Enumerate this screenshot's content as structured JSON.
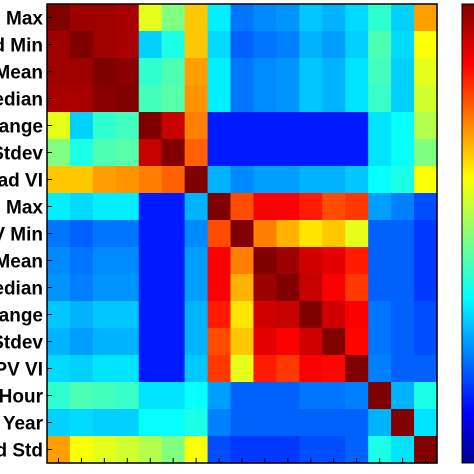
{
  "chart_data": {
    "type": "heatmap",
    "row_labels": [
      "Max",
      "d Min",
      "Mean",
      "edian",
      "ange",
      "Stdev",
      "ad VI",
      "Max",
      "V Min",
      "Mean",
      "edian",
      "ange",
      "Stdev",
      "PV VI",
      "Hour",
      "Year",
      "d Std"
    ],
    "colormap": "jet",
    "colorbar": {
      "visible": true,
      "range": [
        0,
        1
      ]
    },
    "grid": false,
    "values": [
      [
        1.0,
        0.97,
        0.97,
        0.96,
        0.6,
        0.5,
        0.68,
        0.36,
        0.24,
        0.26,
        0.27,
        0.32,
        0.3,
        0.34,
        0.42,
        0.33,
        0.72
      ],
      [
        0.97,
        1.0,
        0.97,
        0.96,
        0.33,
        0.4,
        0.68,
        0.34,
        0.22,
        0.24,
        0.25,
        0.3,
        0.28,
        0.33,
        0.45,
        0.34,
        0.62
      ],
      [
        0.97,
        0.97,
        1.0,
        0.99,
        0.42,
        0.45,
        0.72,
        0.36,
        0.24,
        0.26,
        0.27,
        0.32,
        0.3,
        0.35,
        0.44,
        0.33,
        0.6
      ],
      [
        0.96,
        0.96,
        0.99,
        1.0,
        0.44,
        0.46,
        0.73,
        0.36,
        0.24,
        0.26,
        0.27,
        0.32,
        0.3,
        0.35,
        0.43,
        0.33,
        0.58
      ],
      [
        0.6,
        0.33,
        0.42,
        0.44,
        1.0,
        0.93,
        0.75,
        0.15,
        0.15,
        0.15,
        0.15,
        0.15,
        0.15,
        0.15,
        0.35,
        0.38,
        0.55
      ],
      [
        0.5,
        0.4,
        0.45,
        0.46,
        0.93,
        1.0,
        0.78,
        0.15,
        0.15,
        0.15,
        0.15,
        0.15,
        0.15,
        0.15,
        0.35,
        0.38,
        0.5
      ],
      [
        0.68,
        0.68,
        0.72,
        0.73,
        0.75,
        0.78,
        1.0,
        0.3,
        0.26,
        0.28,
        0.28,
        0.3,
        0.3,
        0.32,
        0.38,
        0.4,
        0.62
      ],
      [
        0.36,
        0.34,
        0.36,
        0.36,
        0.15,
        0.15,
        0.3,
        1.0,
        0.8,
        0.88,
        0.88,
        0.85,
        0.8,
        0.82,
        0.28,
        0.25,
        0.2
      ],
      [
        0.24,
        0.22,
        0.24,
        0.24,
        0.15,
        0.15,
        0.26,
        0.8,
        1.0,
        0.75,
        0.7,
        0.65,
        0.68,
        0.6,
        0.22,
        0.22,
        0.18
      ],
      [
        0.26,
        0.24,
        0.26,
        0.26,
        0.15,
        0.15,
        0.28,
        0.88,
        0.75,
        1.0,
        0.97,
        0.92,
        0.9,
        0.85,
        0.22,
        0.22,
        0.18
      ],
      [
        0.27,
        0.25,
        0.27,
        0.27,
        0.15,
        0.15,
        0.28,
        0.88,
        0.7,
        0.97,
        1.0,
        0.93,
        0.88,
        0.82,
        0.22,
        0.22,
        0.18
      ],
      [
        0.32,
        0.3,
        0.32,
        0.32,
        0.15,
        0.15,
        0.3,
        0.85,
        0.65,
        0.92,
        0.93,
        1.0,
        0.92,
        0.88,
        0.24,
        0.22,
        0.2
      ],
      [
        0.3,
        0.28,
        0.3,
        0.3,
        0.15,
        0.15,
        0.3,
        0.8,
        0.68,
        0.9,
        0.88,
        0.92,
        1.0,
        0.87,
        0.24,
        0.22,
        0.2
      ],
      [
        0.34,
        0.33,
        0.35,
        0.35,
        0.15,
        0.15,
        0.32,
        0.82,
        0.6,
        0.85,
        0.82,
        0.88,
        0.87,
        1.0,
        0.25,
        0.22,
        0.22
      ],
      [
        0.42,
        0.45,
        0.44,
        0.43,
        0.35,
        0.35,
        0.38,
        0.28,
        0.22,
        0.22,
        0.22,
        0.24,
        0.24,
        0.25,
        1.0,
        0.3,
        0.4
      ],
      [
        0.33,
        0.34,
        0.33,
        0.33,
        0.38,
        0.38,
        0.4,
        0.25,
        0.22,
        0.22,
        0.22,
        0.22,
        0.22,
        0.22,
        0.3,
        1.0,
        0.35
      ],
      [
        0.72,
        0.62,
        0.6,
        0.58,
        0.55,
        0.5,
        0.62,
        0.2,
        0.18,
        0.18,
        0.18,
        0.2,
        0.2,
        0.22,
        0.4,
        0.35,
        1.0
      ]
    ]
  }
}
